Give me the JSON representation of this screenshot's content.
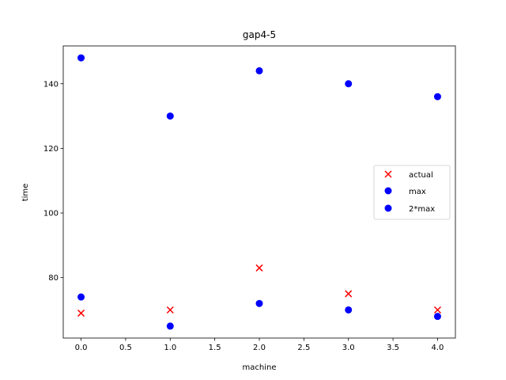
{
  "chart_data": {
    "type": "scatter",
    "title": "gap4-5",
    "xlabel": "machine",
    "ylabel": "time",
    "xlim": [
      -0.2,
      4.2
    ],
    "ylim": [
      61.3,
      151.7
    ],
    "xticks": [
      0.0,
      0.5,
      1.0,
      1.5,
      2.0,
      2.5,
      3.0,
      3.5,
      4.0
    ],
    "xtick_labels": [
      "0.0",
      "0.5",
      "1.0",
      "1.5",
      "2.0",
      "2.5",
      "3.0",
      "3.5",
      "4.0"
    ],
    "yticks": [
      80,
      100,
      120,
      140
    ],
    "ytick_labels": [
      "80",
      "100",
      "120",
      "140"
    ],
    "grid": false,
    "legend_position": "center-right",
    "series": [
      {
        "name": "actual",
        "marker": "x",
        "color": "#ff0000",
        "x": [
          0,
          1,
          2,
          3,
          4
        ],
        "y": [
          69,
          70,
          83,
          75,
          70
        ]
      },
      {
        "name": "max",
        "marker": "circle",
        "color": "#0000ff",
        "x": [
          0,
          1,
          2,
          3,
          4
        ],
        "y": [
          74,
          65,
          72,
          70,
          68
        ]
      },
      {
        "name": "2*max",
        "marker": "circle",
        "color": "#0000ff",
        "x": [
          0,
          1,
          2,
          3,
          4
        ],
        "y": [
          148,
          130,
          144,
          140,
          136
        ]
      }
    ]
  }
}
